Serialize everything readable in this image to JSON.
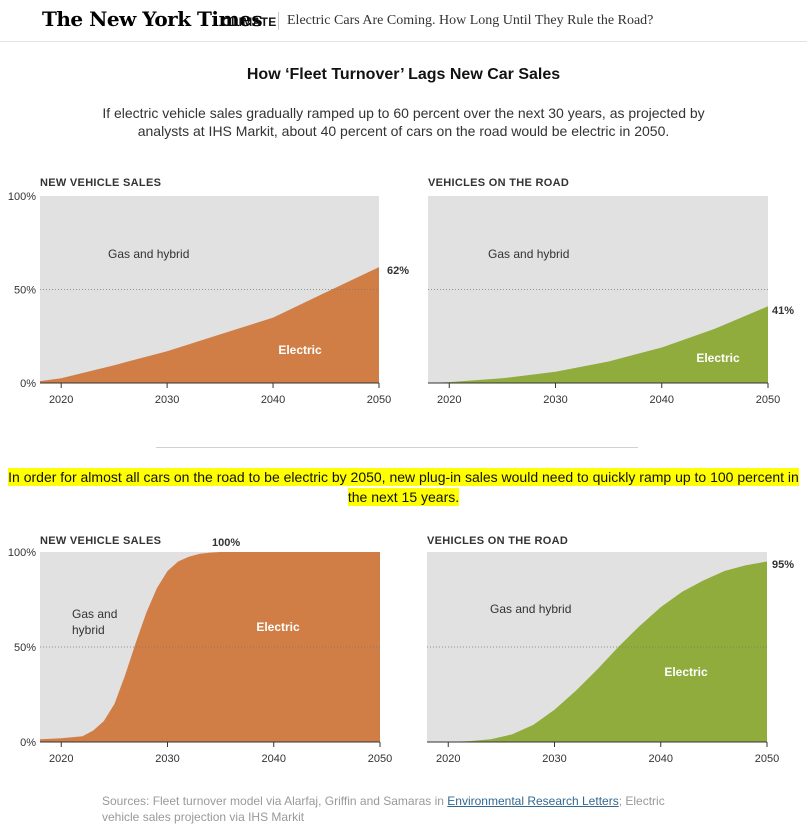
{
  "header": {
    "logo": "The New York Times",
    "section": "Climate",
    "headline": "Electric Cars Are Coming. How Long Until They Rule the Road?"
  },
  "title": "How ‘Fleet Turnover’ Lags New Car Sales",
  "subtitle": "If electric vehicle sales gradually ramped up to 60 percent over the next 30 years, as projected by analysts at IHS Markit, about 40 percent of cars on the road would be electric in 2050.",
  "highlight": "In order for almost all cars on the road to be electric by 2050, new plug-in sales would need to quickly ramp up to 100 percent in the next 15 years.",
  "source": {
    "prefix": "Sources: Fleet turnover model via Alarfaj, Griffin and Samaras in ",
    "link": "Environmental Research Letters",
    "suffix": "; Electric vehicle sales projection via IHS Markit"
  },
  "colors": {
    "electric_sales": "#d07e46",
    "electric_fleet": "#8fac3d",
    "gas_background": "#e1e1e1",
    "highlight": "#ffff00"
  },
  "chart_data": [
    {
      "type": "area",
      "title": "NEW VEHICLE SALES",
      "x": [
        2018,
        2020,
        2025,
        2030,
        2035,
        2040,
        2045,
        2050
      ],
      "series": [
        {
          "name": "Electric",
          "values": [
            1,
            2.5,
            9.5,
            17,
            26,
            35,
            48.5,
            62
          ]
        }
      ],
      "background_label": "Gas and hybrid",
      "end_label": "62%",
      "xticks": [
        "2020",
        "2030",
        "2040",
        "2050"
      ],
      "yticks": [
        "0%",
        "50%",
        "100%"
      ],
      "xlim": [
        2018,
        2050
      ],
      "ylim": [
        0,
        100
      ]
    },
    {
      "type": "area",
      "title": "VEHICLES ON THE ROAD",
      "x": [
        2018,
        2020,
        2025,
        2030,
        2035,
        2040,
        2045,
        2050
      ],
      "series": [
        {
          "name": "Electric",
          "values": [
            0,
            0.5,
            2.5,
            6,
            11.5,
            19,
            29,
            41
          ]
        }
      ],
      "background_label": "Gas and hybrid",
      "end_label": "41%",
      "xticks": [
        "2020",
        "2030",
        "2040",
        "2050"
      ],
      "yticks": [],
      "xlim": [
        2018,
        2050
      ],
      "ylim": [
        0,
        100
      ]
    },
    {
      "type": "area",
      "title": "NEW VEHICLE SALES",
      "x": [
        2018,
        2020,
        2022,
        2023,
        2024,
        2025,
        2026,
        2027,
        2028,
        2029,
        2030,
        2031,
        2032,
        2033,
        2034,
        2035,
        2040,
        2050
      ],
      "series": [
        {
          "name": "Electric",
          "values": [
            1.5,
            2,
            3,
            6,
            11,
            20,
            35,
            52,
            68,
            81,
            90,
            95,
            97.5,
            99,
            99.7,
            100,
            100,
            100
          ]
        }
      ],
      "background_label": "Gas and\nhybrid",
      "end_label": "100%",
      "xticks": [
        "2020",
        "2030",
        "2040",
        "2050"
      ],
      "yticks": [
        "0%",
        "50%",
        "100%"
      ],
      "xlim": [
        2018,
        2050
      ],
      "ylim": [
        0,
        100
      ]
    },
    {
      "type": "area",
      "title": "VEHICLES ON THE ROAD",
      "x": [
        2018,
        2020,
        2022,
        2024,
        2026,
        2028,
        2030,
        2032,
        2034,
        2036,
        2038,
        2040,
        2042,
        2044,
        2046,
        2048,
        2050
      ],
      "series": [
        {
          "name": "Electric",
          "values": [
            0,
            0,
            0.5,
            1.5,
            4,
            9,
            17,
            27,
            38,
            50,
            61,
            71,
            79,
            85,
            90,
            93,
            95
          ]
        }
      ],
      "background_label": "Gas and hybrid",
      "end_label": "95%",
      "xticks": [
        "2020",
        "2030",
        "2040",
        "2050"
      ],
      "yticks": [],
      "xlim": [
        2018,
        2050
      ],
      "ylim": [
        0,
        100
      ]
    }
  ]
}
